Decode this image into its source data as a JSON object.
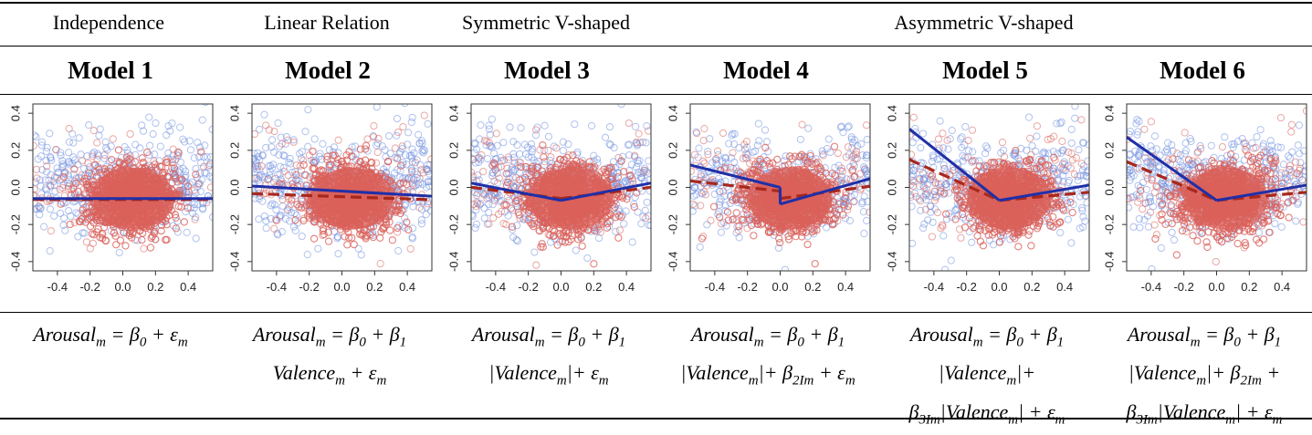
{
  "header": {
    "categories": [
      "Independence",
      "Linear Relation",
      "Symmetric V-shaped",
      "Asymmetric V-shaped"
    ]
  },
  "models": [
    {
      "title": "Model 1",
      "equation_lines": [
        "Arousal_m = β_0 + ε_m"
      ],
      "fit_blue": {
        "type": "flat",
        "level": -0.06
      },
      "fit_red": {
        "type": "flat",
        "level": -0.065
      }
    },
    {
      "title": "Model 2",
      "equation_lines": [
        "Arousal_m = β_0 + β_1",
        "Valence_m + ε_m"
      ],
      "fit_blue": {
        "type": "linear",
        "intercept": -0.02,
        "slope": -0.05
      },
      "fit_red": {
        "type": "linear",
        "intercept": -0.05,
        "slope": -0.03
      }
    },
    {
      "title": "Model 3",
      "equation_lines": [
        "Arousal_m = β_0 + β_1",
        "|Valence_m|+ ε_m"
      ],
      "fit_blue": {
        "type": "v",
        "vertex": -0.07,
        "left_slope": -0.17,
        "right_slope": 0.17
      },
      "fit_red": {
        "type": "v",
        "vertex": -0.06,
        "left_slope": -0.11,
        "right_slope": 0.11
      }
    },
    {
      "title": "Model 4",
      "equation_lines": [
        "Arousal_m = β_0 + β_1",
        "|Valence_m|+ β_2I_m + ε_m"
      ],
      "fit_blue": {
        "type": "v_jump",
        "left_at_zero": 0.0,
        "right_at_zero": -0.09,
        "left_slope": -0.22,
        "right_slope": 0.25
      },
      "fit_red": {
        "type": "v_jump",
        "left_at_zero": -0.02,
        "right_at_zero": -0.06,
        "left_slope": -0.1,
        "right_slope": 0.12
      }
    },
    {
      "title": "Model 5",
      "equation_lines": [
        "Arousal_m = β_0 + β_1",
        "|Valence_m|+",
        "β_3I_m|Valence_m| + ε_m"
      ],
      "fit_blue": {
        "type": "v",
        "vertex": -0.07,
        "left_slope": -0.7,
        "right_slope": 0.15
      },
      "fit_red": {
        "type": "v",
        "vertex": -0.07,
        "left_slope": -0.4,
        "right_slope": 0.08
      }
    },
    {
      "title": "Model 6",
      "equation_lines": [
        "Arousal_m = β_0 + β_1",
        "|Valence_m|+ β_2I_m +",
        "β_3I_m|Valence_m| + ε_m"
      ],
      "fit_blue": {
        "type": "v",
        "vertex": -0.07,
        "left_slope": -0.62,
        "right_slope": 0.15
      },
      "fit_red": {
        "type": "v",
        "vertex": -0.07,
        "left_slope": -0.38,
        "right_slope": 0.08
      }
    }
  ],
  "axes": {
    "x_ticks": [
      "-0.4",
      "-0.2",
      "0.0",
      "0.2",
      "0.4"
    ],
    "y_ticks": [
      "0.4",
      "0.2",
      "0.0",
      "-0.2",
      "-0.4"
    ],
    "xlim": [
      -0.55,
      0.55
    ],
    "ylim": [
      -0.45,
      0.45
    ]
  },
  "colors": {
    "blue_points": "#6f8fe0",
    "red_points": "#d9605a",
    "blue_fit": "#1f2fa8",
    "red_fit": "#a8281c"
  }
}
